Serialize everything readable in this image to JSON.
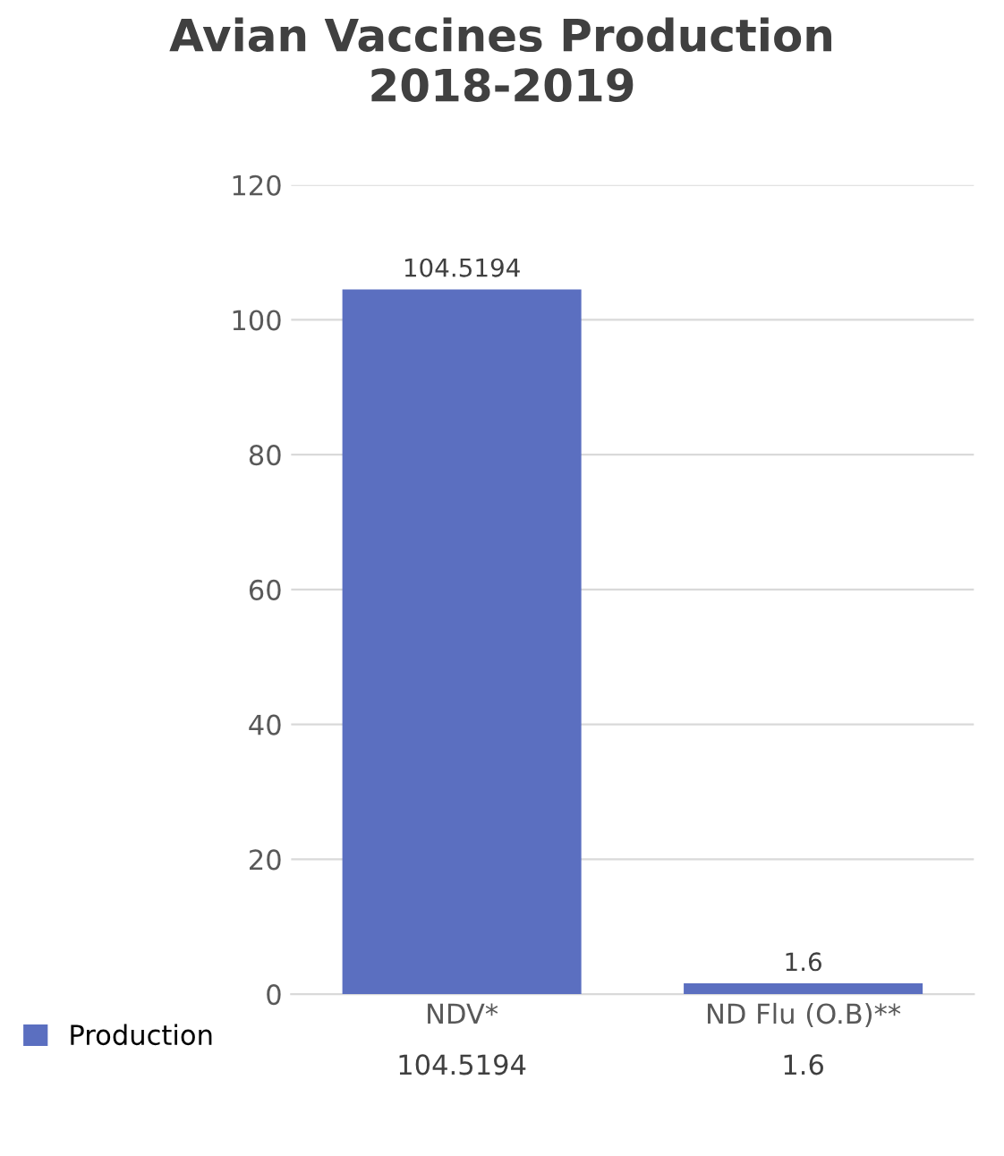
{
  "chart_data": {
    "type": "bar",
    "title": "Avian Vaccines Production\n2018-2019",
    "categories": [
      "NDV*",
      "ND Flu (O.B)**"
    ],
    "series": [
      {
        "name": "Production",
        "color": "#5b6fc0",
        "values": [
          104.5194,
          1.6
        ],
        "value_labels": [
          "104.5194",
          "1.6"
        ]
      }
    ],
    "ylim": [
      0,
      120
    ],
    "yticks": [
      0,
      20,
      40,
      60,
      80,
      100,
      120
    ],
    "grid": "y",
    "legend": "bottom left"
  }
}
